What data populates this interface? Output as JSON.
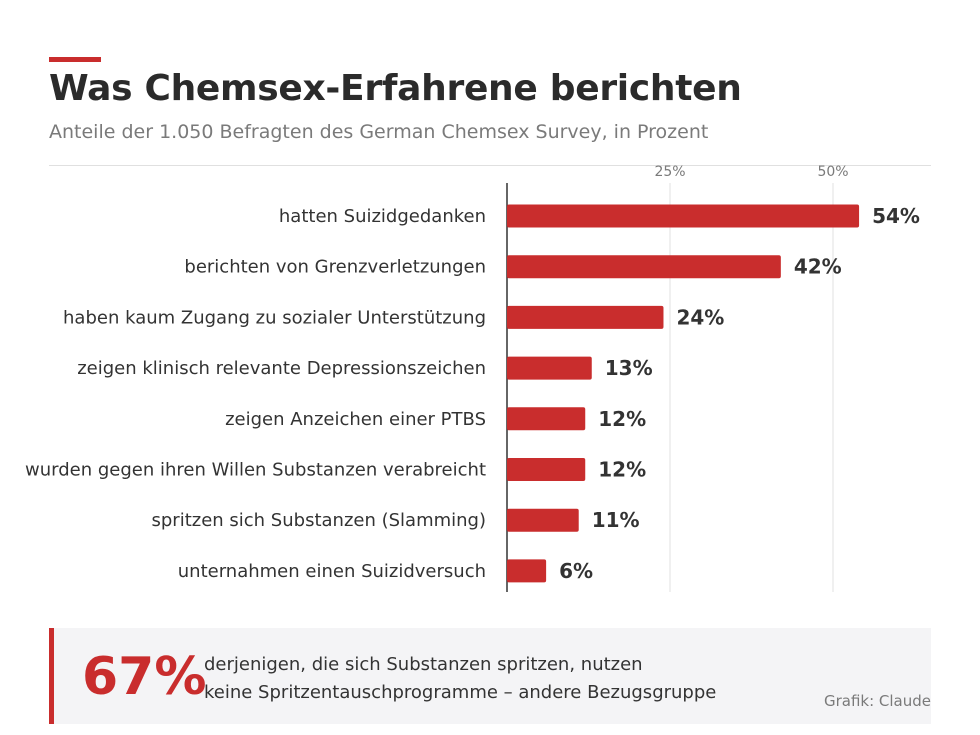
{
  "colors": {
    "accent": "#c92d2d",
    "title": "#2b2b2b",
    "muted": "#7a7a7a",
    "grid": "#e0e0e0",
    "axis": "#333333",
    "callout_bg": "#f4f4f6"
  },
  "header": {
    "title": "Was Chemsex-Erfahrene berichten",
    "subtitle": "Anteile der 1.050 Befragten des German Chemsex Survey, in Prozent"
  },
  "chart_data": {
    "type": "bar",
    "orientation": "horizontal",
    "title": "Was Chemsex-Erfahrene berichten",
    "subtitle": "Anteile der 1.050 Befragten des German Chemsex Survey, in Prozent",
    "categories": [
      "hatten Suizidgedanken",
      "berichten von Grenzverletzungen",
      "haben kaum Zugang zu sozialer Unterstützung",
      "zeigen klinisch relevante Depressionszeichen",
      "zeigen Anzeichen einer PTBS",
      "wurden gegen ihren Willen Substanzen verabreicht",
      "spritzen sich Substanzen (Slamming)",
      "unternahmen einen Suizidversuch"
    ],
    "values": [
      54,
      42,
      24,
      13,
      12,
      12,
      11,
      6
    ],
    "value_labels": [
      "54%",
      "42%",
      "24%",
      "13%",
      "12%",
      "12%",
      "11%",
      "6%"
    ],
    "x_ticks": [
      25,
      50
    ],
    "x_tick_labels": [
      "25%",
      "50%"
    ],
    "xlim": [
      0,
      65
    ],
    "grid": true,
    "legend": "none"
  },
  "callout": {
    "number": "67%",
    "line1": "derjenigen, die sich Substanzen spritzen, nutzen",
    "line2": "keine Spritzentauschprogramme – andere Bezugsgruppe",
    "credit": "Grafik: Claude"
  }
}
